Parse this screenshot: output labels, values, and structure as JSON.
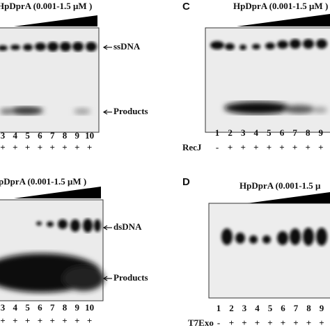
{
  "panels": [
    {
      "title": "HpDprA (0.001-1.5 μM )",
      "bands": [
        "ssDNA",
        "Products"
      ],
      "lanes": [
        "3",
        "4",
        "5",
        "6",
        "7",
        "8",
        "9",
        "10"
      ],
      "signs": [
        "+",
        "+",
        "+",
        "+",
        "+",
        "+",
        "+",
        "+"
      ]
    },
    {
      "letter": "C",
      "title": "HpDprA (0.001-1.5 μM )",
      "lanes": [
        "1",
        "2",
        "3",
        "4",
        "5",
        "6",
        "7",
        "8",
        "9"
      ],
      "treatment": "RecJ",
      "signs": [
        "-",
        "+",
        "+",
        "+",
        "+",
        "+",
        "+",
        "+",
        "+"
      ]
    },
    {
      "title": "pDprA (0.001-1.5 μM )",
      "bands": [
        "dsDNA",
        "Products"
      ],
      "lanes": [
        "3",
        "4",
        "5",
        "6",
        "7",
        "8",
        "9",
        "10"
      ],
      "signs": [
        "+",
        "+",
        "+",
        "+",
        "+",
        "+",
        "+",
        "+"
      ]
    },
    {
      "letter": "D",
      "title": "HpDprA (0.001-1.5 μ",
      "lanes": [
        "1",
        "2",
        "3",
        "4",
        "5",
        "6",
        "7",
        "8",
        "9"
      ],
      "treatment": "T7Exo",
      "signs": [
        "-",
        "+",
        "+",
        "+",
        "+",
        "+",
        "+",
        "+",
        "+"
      ]
    }
  ]
}
